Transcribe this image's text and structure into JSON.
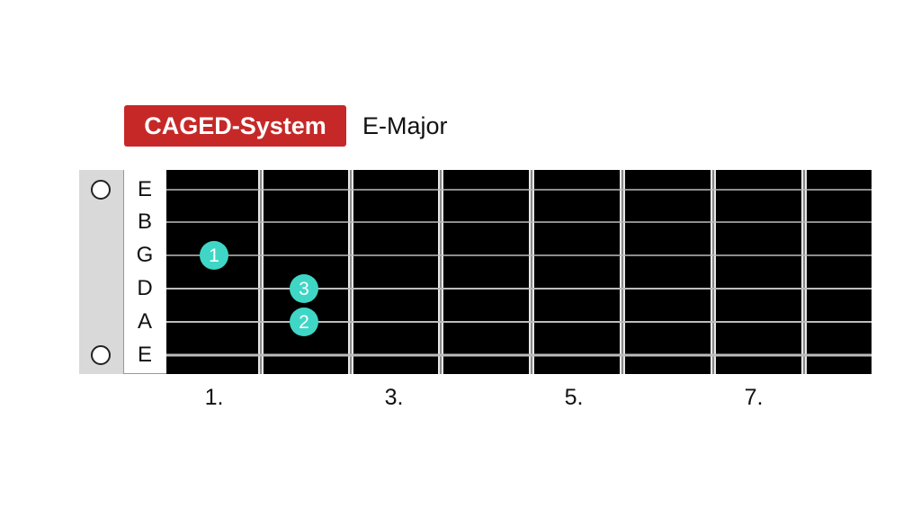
{
  "header": {
    "badge_label": "CAGED-System",
    "chord_name": "E-Major"
  },
  "colors": {
    "badge": "#c62828",
    "fretboard": "#000000",
    "marker": "#3fd6c6",
    "string": "#bdbdbd",
    "fret": "#e6e6e6"
  },
  "strings": [
    "E",
    "B",
    "G",
    "D",
    "A",
    "E"
  ],
  "open_strings": [
    {
      "string_index": 0,
      "icon": "open-string-circle-icon"
    },
    {
      "string_index": 5,
      "icon": "open-string-circle-icon"
    }
  ],
  "frets": {
    "count": 8
  },
  "fret_labels": [
    {
      "fret": 1,
      "text": "1."
    },
    {
      "fret": 3,
      "text": "3."
    },
    {
      "fret": 5,
      "text": "5."
    },
    {
      "fret": 7,
      "text": "7."
    }
  ],
  "notes": [
    {
      "string_index": 2,
      "fret": 1,
      "finger": "1"
    },
    {
      "string_index": 3,
      "fret": 2,
      "finger": "3"
    },
    {
      "string_index": 4,
      "fret": 2,
      "finger": "2"
    }
  ]
}
